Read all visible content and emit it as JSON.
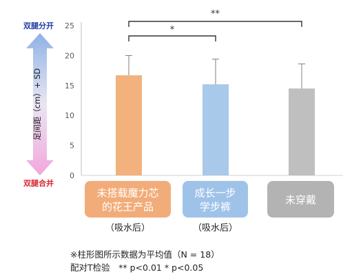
{
  "chart_data": {
    "type": "bar",
    "categories": [
      "未搭载魔力芯的花王产品",
      "成长一步学步裤",
      "未穿戴"
    ],
    "category_labels": [
      [
        "未搭载魔力芯",
        "的花王产品"
      ],
      [
        "成长一步",
        "学步裤"
      ],
      [
        "未穿戴"
      ]
    ],
    "category_sublabels": [
      "（吸水后）",
      "（吸水后）",
      ""
    ],
    "values": [
      16.7,
      15.2,
      14.5
    ],
    "sd_upper": [
      20.0,
      19.4,
      18.6
    ],
    "ylim": [
      0,
      25
    ],
    "yticks": [
      0,
      5,
      10,
      15,
      20,
      25
    ],
    "ylabel": "足间距（cm）+ SD",
    "bar_colors": [
      "#f3b27d",
      "#a9c9ea",
      "#bfbfbf"
    ],
    "label_box_colors": [
      "#f2ac79",
      "#9fc3e8",
      "#b3b3b3"
    ],
    "significance": [
      {
        "from": 0,
        "to": 1,
        "label": "*"
      },
      {
        "from": 0,
        "to": 2,
        "label": "**"
      }
    ],
    "grid": false
  },
  "axis_annotations": {
    "top": "双腿分开",
    "bottom": "双腿合并",
    "top_color": "#1f3aa0",
    "bottom_color": "#d9262c"
  },
  "notes": {
    "line1": "※柱形图所示数据为平均值（N = 18）",
    "line2": "配对T检验　** p<0.01  * p<0.05"
  }
}
